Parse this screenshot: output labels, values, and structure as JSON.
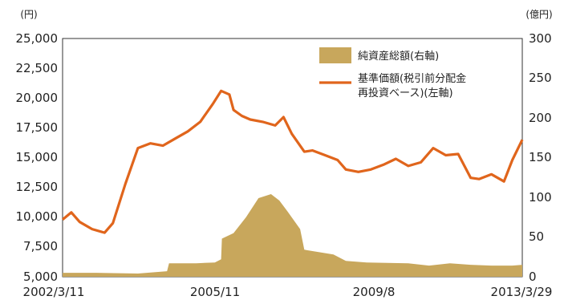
{
  "chart_data": {
    "type": "line",
    "title": "",
    "y_left_unit": "(円)",
    "y_right_unit": "(億円)",
    "y_left_ticks": [
      "25,000",
      "22,500",
      "20,000",
      "17,500",
      "15,000",
      "12,500",
      "10,000",
      "7,500",
      "5,000"
    ],
    "y_right_ticks": [
      "300",
      "250",
      "200",
      "150",
      "100",
      "50",
      "0"
    ],
    "x_tick_labels": [
      "2002/3/11",
      "2005/11",
      "2009/8",
      "2013/3/29"
    ],
    "ylim_left": [
      5000,
      25000
    ],
    "ylim_right": [
      0,
      300
    ],
    "grid": false,
    "legend_position": "top-right",
    "colors": {
      "area": "#c8a75c",
      "line": "#e0651c"
    },
    "series": [
      {
        "name": "純資産総額(右軸)",
        "type": "area",
        "axis": "right",
        "x": [
          2002.19,
          2003.0,
          2004.0,
          2004.7,
          2004.75,
          2005.4,
          2005.85,
          2006.0,
          2006.02,
          2006.3,
          2006.6,
          2006.9,
          2007.2,
          2007.4,
          2007.6,
          2007.9,
          2008.0,
          2008.7,
          2009.0,
          2009.5,
          2010.5,
          2011.0,
          2011.5,
          2012.0,
          2012.5,
          2013.0,
          2013.24
        ],
        "values": [
          5,
          5,
          4,
          7,
          17,
          17,
          18,
          22,
          48,
          55,
          75,
          99,
          104,
          96,
          82,
          60,
          34,
          28,
          20,
          18,
          17,
          14,
          17,
          15,
          14,
          14,
          15
        ]
      },
      {
        "name": "基準価額(税引前分配金再投資ベース)(左軸)",
        "type": "line",
        "axis": "left",
        "x": [
          2002.19,
          2002.4,
          2002.6,
          2002.9,
          2003.2,
          2003.4,
          2003.7,
          2004.0,
          2004.3,
          2004.6,
          2004.9,
          2005.2,
          2005.5,
          2005.8,
          2006.0,
          2006.2,
          2006.3,
          2006.5,
          2006.7,
          2007.0,
          2007.3,
          2007.5,
          2007.7,
          2008.0,
          2008.2,
          2008.5,
          2008.8,
          2009.0,
          2009.3,
          2009.6,
          2009.9,
          2010.2,
          2010.5,
          2010.8,
          2011.1,
          2011.4,
          2011.7,
          2012.0,
          2012.2,
          2012.5,
          2012.8,
          2013.0,
          2013.24
        ],
        "values": [
          9800,
          10400,
          9600,
          9000,
          8700,
          9500,
          12800,
          15800,
          16200,
          16000,
          16600,
          17200,
          18000,
          19500,
          20600,
          20300,
          19000,
          18500,
          18200,
          18000,
          17700,
          18400,
          17000,
          15500,
          15600,
          15200,
          14800,
          14000,
          13800,
          14000,
          14400,
          14900,
          14300,
          14600,
          15800,
          15200,
          15300,
          13300,
          13200,
          13600,
          13000,
          14800,
          16500
        ]
      }
    ]
  }
}
